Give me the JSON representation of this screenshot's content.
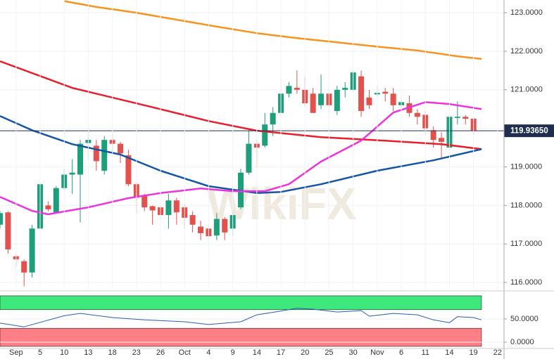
{
  "chart_data": [
    {
      "type": "candlestick",
      "watermark": "WikiFX",
      "x": [
        0,
        1,
        2,
        3,
        4,
        5,
        6,
        7,
        8,
        9,
        10,
        11,
        12,
        13,
        14,
        15,
        16,
        17,
        18,
        19,
        20,
        21,
        22,
        23,
        24,
        25,
        26,
        27,
        28,
        29,
        30,
        31,
        32,
        33,
        34,
        35,
        36,
        37,
        38,
        39,
        40,
        41,
        42,
        43,
        44,
        45,
        46,
        47,
        48,
        49,
        50,
        51,
        52,
        53,
        54,
        55,
        56,
        57,
        58,
        59
      ],
      "open": [
        117.5,
        117.82,
        116.68,
        116.55,
        116.26,
        117.4,
        118.0,
        117.82,
        118.45,
        118.8,
        118.8,
        119.62,
        119.55,
        118.9,
        119.7,
        119.6,
        119.3,
        118.55,
        118.25,
        117.98,
        117.95,
        117.75,
        118.13,
        117.95,
        117.75,
        117.45,
        117.4,
        117.22,
        117.65,
        117.4,
        117.95,
        118.85,
        119.6,
        119.55,
        120.1,
        120.4,
        120.9,
        121.05,
        121.0,
        120.9,
        120.6,
        120.9,
        120.45,
        121.0,
        121.0,
        121.35,
        120.8,
        120.88,
        120.95,
        120.9,
        120.6,
        120.65,
        120.4,
        120.35,
        119.95,
        119.75,
        119.5,
        120.27,
        120.3,
        120.25
      ],
      "high": [
        117.85,
        117.85,
        116.72,
        116.6,
        117.5,
        118.7,
        118.1,
        118.5,
        118.95,
        119.2,
        119.7,
        120.0,
        119.7,
        119.8,
        119.85,
        119.65,
        119.45,
        118.6,
        118.3,
        118.0,
        118.05,
        118.3,
        118.2,
        118.05,
        117.85,
        117.6,
        117.5,
        117.8,
        117.7,
        117.85,
        118.95,
        119.95,
        119.7,
        120.4,
        120.55,
        121.3,
        121.2,
        121.5,
        121.35,
        121.05,
        121.4,
        121.0,
        121.1,
        121.2,
        121.5,
        121.5,
        121.0,
        121.1,
        121.05,
        121.05,
        120.8,
        120.85,
        120.5,
        120.45,
        120.05,
        119.9,
        120.35,
        120.7,
        120.35,
        120.3
      ],
      "low": [
        117.4,
        116.75,
        116.42,
        115.9,
        116.13,
        117.3,
        117.85,
        117.8,
        118.4,
        118.3,
        117.56,
        119.2,
        118.9,
        118.8,
        119.4,
        119.1,
        118.5,
        117.8,
        117.85,
        117.5,
        117.55,
        117.4,
        117.5,
        117.4,
        117.3,
        117.1,
        117.1,
        117.1,
        117.1,
        117.2,
        117.9,
        118.8,
        119.0,
        119.5,
        119.8,
        120.3,
        120.8,
        120.9,
        120.6,
        120.4,
        120.5,
        120.4,
        120.35,
        120.8,
        120.95,
        120.3,
        120.5,
        120.8,
        120.7,
        120.45,
        120.5,
        120.3,
        120.1,
        119.85,
        119.5,
        119.2,
        119.4,
        120.1,
        120.1,
        119.85
      ],
      "close": [
        117.8,
        116.86,
        116.6,
        116.26,
        117.4,
        118.55,
        117.9,
        118.45,
        118.8,
        118.85,
        119.6,
        119.7,
        119.15,
        119.7,
        119.6,
        119.35,
        118.55,
        118.2,
        117.95,
        117.87,
        117.75,
        118.13,
        117.82,
        117.68,
        117.5,
        117.28,
        117.2,
        117.65,
        117.3,
        117.75,
        118.85,
        119.6,
        119.5,
        120.1,
        120.4,
        120.9,
        121.1,
        121.0,
        120.65,
        120.4,
        120.9,
        120.6,
        121.0,
        121.05,
        121.45,
        120.45,
        120.6,
        120.92,
        120.9,
        120.6,
        120.68,
        120.4,
        120.3,
        120.0,
        119.7,
        119.65,
        120.3,
        120.3,
        120.25,
        119.94
      ],
      "up_color": "#1e9e7a",
      "down_color": "#e3514d",
      "lines": [
        {
          "color": "#f7931e",
          "x": [
            8,
            12,
            17,
            22,
            27,
            32,
            37,
            42,
            47,
            52,
            57,
            60
          ],
          "values": [
            123.3,
            123.15,
            123.0,
            122.82,
            122.64,
            122.47,
            122.34,
            122.23,
            122.12,
            122.02,
            121.87,
            121.8
          ]
        },
        {
          "color": "#e81e2c",
          "x": [
            0,
            9,
            18,
            26,
            32,
            40,
            48,
            55,
            60
          ],
          "values": [
            121.74,
            121.05,
            120.6,
            120.19,
            119.94,
            119.77,
            119.68,
            119.59,
            119.46
          ]
        },
        {
          "color": "#1455a5",
          "x": [
            0,
            4,
            9,
            15,
            20,
            26,
            32,
            35,
            40,
            47,
            54,
            60
          ],
          "values": [
            120.32,
            119.95,
            119.59,
            119.32,
            118.9,
            118.5,
            118.32,
            118.35,
            118.55,
            118.9,
            119.17,
            119.46
          ]
        },
        {
          "color": "#ee33dd",
          "x": [
            0,
            4,
            6,
            11,
            16,
            20,
            25,
            29,
            33,
            36,
            40,
            45,
            49,
            53,
            56,
            60
          ],
          "values": [
            118.22,
            117.86,
            117.77,
            117.95,
            118.19,
            118.32,
            118.44,
            118.37,
            118.37,
            118.55,
            119.14,
            119.68,
            120.41,
            120.68,
            120.63,
            120.5
          ]
        }
      ],
      "last_price": {
        "value": 119.9365,
        "label": "119.93650"
      },
      "last_price_color": "#1f2d4e",
      "xlim": [
        0,
        62.8
      ],
      "ylim": [
        115.82,
        123.33
      ],
      "yticks": [
        {
          "value": 116,
          "label": "116.0000"
        },
        {
          "value": 117,
          "label": "117.0000"
        },
        {
          "value": 118,
          "label": "118.0000"
        },
        {
          "value": 119,
          "label": "119.0000"
        },
        {
          "value": 120,
          "label": "120.0000"
        },
        {
          "value": 121,
          "label": "121.0000"
        },
        {
          "value": 122,
          "label": "122.0000"
        },
        {
          "value": 123,
          "label": "123.0000"
        }
      ],
      "grid": true
    },
    {
      "type": "line",
      "color": "#2a5db0",
      "x": [
        0,
        3,
        8,
        10,
        14,
        18,
        23,
        26,
        30,
        32,
        35,
        37,
        39,
        42,
        45,
        46,
        49,
        52,
        54,
        56,
        57,
        59,
        60
      ],
      "values": [
        41,
        33,
        57,
        62,
        53,
        48,
        44,
        38,
        44,
        59,
        67,
        73,
        71,
        65,
        68,
        56,
        62,
        59,
        48,
        42,
        55,
        53,
        48
      ],
      "upper_band": 70,
      "upper_color": "#3ee87c",
      "lower_band": 30,
      "lower_color": "#ff7f86",
      "xlim": [
        0,
        62.8
      ],
      "ylim": [
        -13.6,
        104.5
      ],
      "yticks": [
        {
          "value": 0,
          "label": "0.0000"
        },
        {
          "value": 50,
          "label": "50.0000"
        }
      ],
      "xticks": [
        {
          "value": 2,
          "label": "Sep"
        },
        {
          "value": 5,
          "label": "5"
        },
        {
          "value": 8,
          "label": "10"
        },
        {
          "value": 11,
          "label": "13"
        },
        {
          "value": 14,
          "label": "18"
        },
        {
          "value": 17,
          "label": "23"
        },
        {
          "value": 20,
          "label": "26"
        },
        {
          "value": 23,
          "label": "Oct"
        },
        {
          "value": 26,
          "label": "4"
        },
        {
          "value": 29,
          "label": "9"
        },
        {
          "value": 32,
          "label": "14"
        },
        {
          "value": 35,
          "label": "17"
        },
        {
          "value": 38,
          "label": "20"
        },
        {
          "value": 41,
          "label": "25"
        },
        {
          "value": 44,
          "label": "30"
        },
        {
          "value": 47,
          "label": "Nov"
        },
        {
          "value": 50,
          "label": "6"
        },
        {
          "value": 53,
          "label": "11"
        },
        {
          "value": 56,
          "label": "14"
        },
        {
          "value": 59,
          "label": "19"
        },
        {
          "value": 62,
          "label": "22"
        }
      ],
      "grid": true
    }
  ]
}
